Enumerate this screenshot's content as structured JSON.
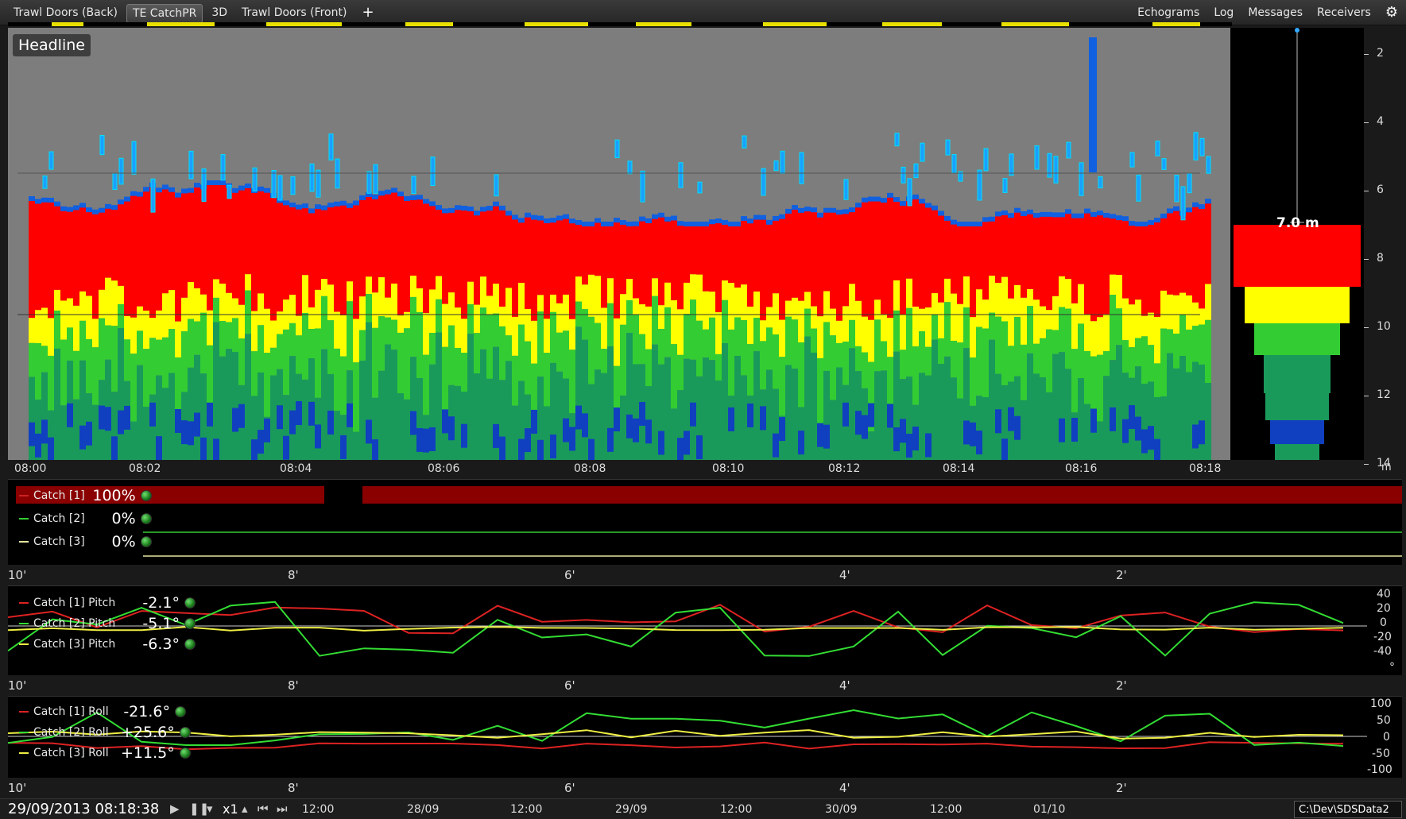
{
  "tabs": [
    {
      "label": "Trawl Doors (Back)",
      "active": false
    },
    {
      "label": "TE CatchPR",
      "active": true
    },
    {
      "label": "3D",
      "active": false
    },
    {
      "label": "Trawl Doors (Front)",
      "active": false
    }
  ],
  "add_tab_icon": "plus-icon",
  "right_menu": [
    "Echograms",
    "Log",
    "Messages",
    "Receivers"
  ],
  "settings_icon": "gear-icon",
  "echogram": {
    "headline": "Headline",
    "scale_value": "7.0 m",
    "depth_labels": [
      "2",
      "4",
      "6",
      "8",
      "10",
      "12",
      "14"
    ],
    "depth_unit": "m",
    "time_labels": [
      "08:00",
      "08:02",
      "08:04",
      "08:06",
      "08:08",
      "08:10",
      "08:12",
      "08:14",
      "08:16",
      "08:18"
    ],
    "colors": {
      "background": "#7d7d7d",
      "strong": "#ff0000",
      "medium": "#ffff00",
      "light": "#33cc33",
      "weak": "#1a9a5a",
      "faint": "#1040c0"
    }
  },
  "catch_panel": {
    "rows": [
      {
        "name": "Catch [1]",
        "value": "100%",
        "color": "#cc2222"
      },
      {
        "name": "Catch [2]",
        "value": "0%",
        "color": "#33cc33"
      },
      {
        "name": "Catch [3]",
        "value": "0%",
        "color": "#e6e6a0"
      }
    ]
  },
  "minute_labels": [
    "10'",
    "8'",
    "6'",
    "4'",
    "2'"
  ],
  "pitch_panel": {
    "rows": [
      {
        "name": "Catch [1] Pitch",
        "value": "-2.1°",
        "color": "#dd2222"
      },
      {
        "name": "Catch [2] Pitch",
        "value": "-5.1°",
        "color": "#33dd33"
      },
      {
        "name": "Catch [3] Pitch",
        "value": "-6.3°",
        "color": "#eeee44"
      }
    ],
    "y_labels": [
      "40",
      "20",
      "0",
      "-20",
      "-40"
    ],
    "y_unit": "°"
  },
  "roll_panel": {
    "rows": [
      {
        "name": "Catch [1] Roll",
        "value": "-21.6°",
        "color": "#dd2222"
      },
      {
        "name": "Catch [2] Roll",
        "value": "+25.6°",
        "color": "#33dd33"
      },
      {
        "name": "Catch [3] Roll",
        "value": "+11.5°",
        "color": "#eeee44"
      }
    ],
    "y_labels": [
      "100",
      "50",
      "0",
      "-50",
      "-100"
    ]
  },
  "bottom": {
    "clock": "29/09/2013 08:18:38",
    "speed": "x1",
    "date_labels": [
      "12:00",
      "28/09",
      "12:00",
      "29/09",
      "12:00",
      "30/09",
      "12:00",
      "01/10"
    ],
    "path": "C:\\Dev\\SDSData2"
  }
}
